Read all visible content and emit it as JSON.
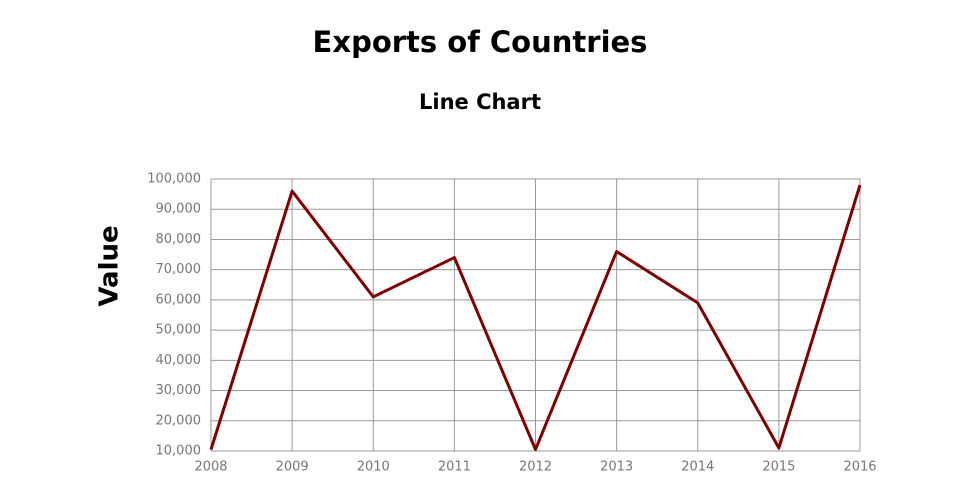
{
  "chart_data": {
    "type": "line",
    "title": "Exports of Countries",
    "subtitle": "Line Chart",
    "y_label": "Value",
    "x": [
      2008,
      2009,
      2010,
      2011,
      2012,
      2013,
      2014,
      2015,
      2016
    ],
    "series": [
      {
        "color": "#800000",
        "values": [
          10500,
          96000,
          61000,
          74000,
          10500,
          76000,
          59000,
          11000,
          98000
        ]
      }
    ],
    "xlim": [
      2008,
      2016
    ],
    "xticks": [
      2008,
      2009,
      2010,
      2011,
      2012,
      2013,
      2014,
      2015,
      2016
    ],
    "ylim": [
      10000,
      100000
    ],
    "yticks": [
      {
        "value": 10000,
        "label": "10,000"
      },
      {
        "value": 20000,
        "label": "20,000"
      },
      {
        "value": 30000,
        "label": "30,000"
      },
      {
        "value": 40000,
        "label": "40,000"
      },
      {
        "value": 50000,
        "label": "50,000"
      },
      {
        "value": 60000,
        "label": "60,000"
      },
      {
        "value": 70000,
        "label": "70,000"
      },
      {
        "value": 80000,
        "label": "80,000"
      },
      {
        "value": 90000,
        "label": "90,000"
      },
      {
        "value": 100000,
        "label": "100,000"
      }
    ],
    "grid": true
  }
}
